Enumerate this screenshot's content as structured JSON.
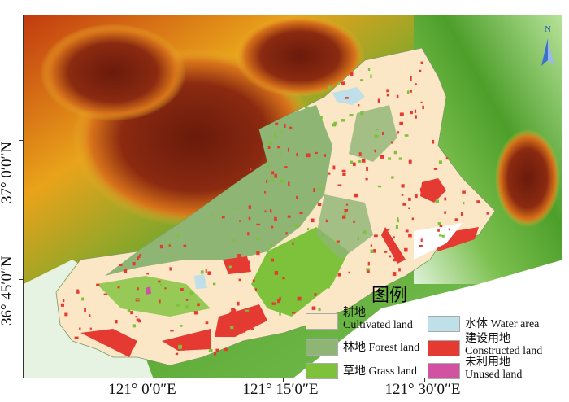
{
  "axes": {
    "x_labels": [
      "121°  0′0″E",
      "121°  15′0″E",
      "121°  30′0″E"
    ],
    "y_labels": [
      "37°  0′0″N",
      "36°  45′0″N"
    ]
  },
  "north_arrow": {
    "label": "N"
  },
  "legend": {
    "title": "图例",
    "items": [
      {
        "cn": "耕地",
        "en": "Cultivated land",
        "color": "#fbe7c6"
      },
      {
        "cn": "林地",
        "en": "Forest land",
        "color": "#8fb574"
      },
      {
        "cn": "草地",
        "en": "Grass land",
        "color": "#7dc23a"
      },
      {
        "cn": "水体",
        "en": "Water area",
        "color": "#bfe0e8"
      },
      {
        "cn": "建设用地",
        "en": "Constructed land",
        "color": "#e43a32"
      },
      {
        "cn": "未利用地",
        "en": "Unused land",
        "color": "#d052a0"
      }
    ]
  }
}
